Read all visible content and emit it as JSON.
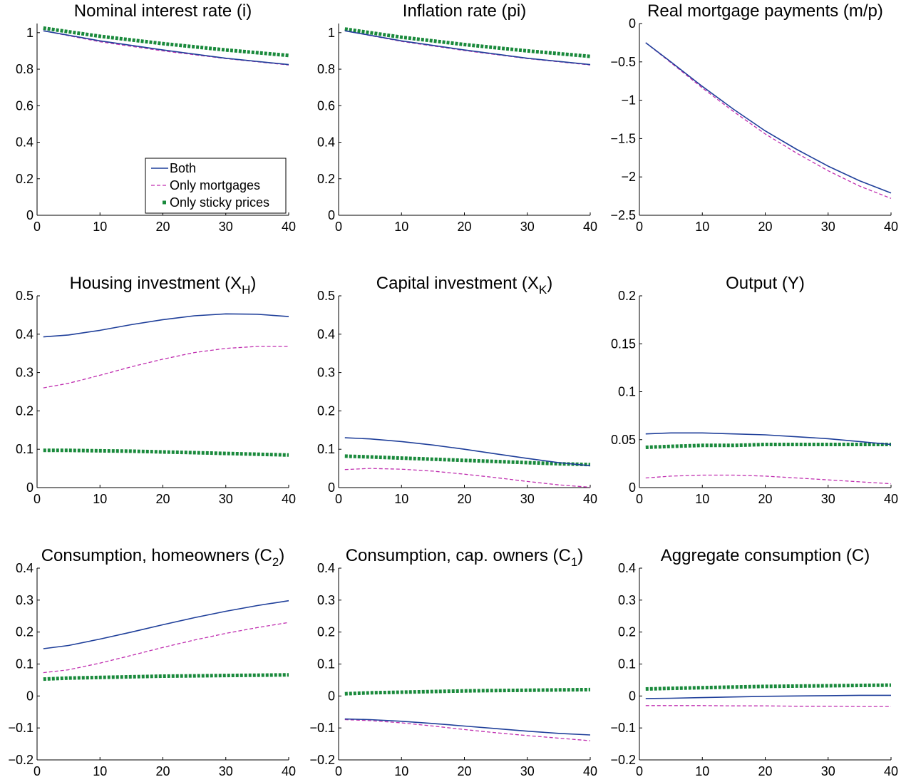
{
  "legend": {
    "entries": [
      "Both",
      "Only mortgages",
      "Only sticky prices"
    ],
    "placement": "lower-right of first panel"
  },
  "series_styles": [
    {
      "name": "Both",
      "color": "#1f3f9a",
      "style": "solid"
    },
    {
      "name": "Only mortgages",
      "color": "#c02fb0",
      "style": "dashed"
    },
    {
      "name": "Only sticky prices",
      "color": "#1a8a3c",
      "style": "dotted-square"
    }
  ],
  "chart_data": [
    {
      "type": "line",
      "title": "Nominal interest rate (i)",
      "title_main": "Nominal interest rate (i)",
      "title_sub": "",
      "title_tail": "",
      "xlim": [
        0,
        40
      ],
      "ylim": [
        0,
        1.05
      ],
      "xticks": [
        0,
        10,
        20,
        30,
        40
      ],
      "yticks": [
        0,
        0.2,
        0.4,
        0.6,
        0.8,
        1
      ],
      "ytick_labels": [
        "0",
        "0.2",
        "0.4",
        "0.6",
        "0.8",
        "1"
      ],
      "x": [
        1,
        10,
        20,
        30,
        40
      ],
      "series": [
        {
          "name": "Both",
          "values": [
            1.01,
            0.955,
            0.905,
            0.86,
            0.825
          ]
        },
        {
          "name": "Only mortgages",
          "values": [
            1.01,
            0.95,
            0.9,
            0.858,
            0.823
          ]
        },
        {
          "name": "Only sticky prices",
          "values": [
            1.025,
            0.98,
            0.94,
            0.905,
            0.875
          ]
        }
      ]
    },
    {
      "type": "line",
      "title": "Inflation rate (pi)",
      "title_main": "Inflation rate (pi)",
      "title_sub": "",
      "title_tail": "",
      "xlim": [
        0,
        40
      ],
      "ylim": [
        0,
        1.05
      ],
      "xticks": [
        0,
        10,
        20,
        30,
        40
      ],
      "yticks": [
        0,
        0.2,
        0.4,
        0.6,
        0.8,
        1
      ],
      "ytick_labels": [
        "0",
        "0.2",
        "0.4",
        "0.6",
        "0.8",
        "1"
      ],
      "x": [
        1,
        10,
        20,
        30,
        40
      ],
      "series": [
        {
          "name": "Both",
          "values": [
            1.01,
            0.955,
            0.905,
            0.86,
            0.825
          ]
        },
        {
          "name": "Only mortgages",
          "values": [
            1.01,
            0.952,
            0.902,
            0.858,
            0.823
          ]
        },
        {
          "name": "Only sticky prices",
          "values": [
            1.02,
            0.975,
            0.935,
            0.9,
            0.87
          ]
        }
      ]
    },
    {
      "type": "line",
      "title": "Real mortgage payments (m/p)",
      "title_main": "Real mortgage payments (m/p)",
      "title_sub": "",
      "title_tail": "",
      "xlim": [
        0,
        40
      ],
      "ylim": [
        -2.5,
        0
      ],
      "xticks": [
        0,
        10,
        20,
        30,
        40
      ],
      "yticks": [
        -2.5,
        -2,
        -1.5,
        -1,
        -0.5,
        0
      ],
      "ytick_labels": [
        "−2.5",
        "−2",
        "−1.5",
        "−1",
        "−0.5",
        "0"
      ],
      "x": [
        1,
        5,
        10,
        15,
        20,
        25,
        30,
        35,
        40
      ],
      "series": [
        {
          "name": "Both",
          "values": [
            -0.25,
            -0.5,
            -0.82,
            -1.12,
            -1.4,
            -1.64,
            -1.86,
            -2.05,
            -2.21
          ]
        },
        {
          "name": "Only mortgages",
          "values": [
            -0.25,
            -0.51,
            -0.84,
            -1.15,
            -1.44,
            -1.69,
            -1.92,
            -2.12,
            -2.28
          ]
        }
      ]
    },
    {
      "type": "line",
      "title": "Housing investment (XH)",
      "title_main": "Housing investment (X",
      "title_sub": "H",
      "title_tail": ")",
      "xlim": [
        0,
        40
      ],
      "ylim": [
        0,
        0.5
      ],
      "xticks": [
        0,
        10,
        20,
        30,
        40
      ],
      "yticks": [
        0,
        0.1,
        0.2,
        0.3,
        0.4,
        0.5
      ],
      "ytick_labels": [
        "0",
        "0.1",
        "0.2",
        "0.3",
        "0.4",
        "0.5"
      ],
      "x": [
        1,
        5,
        10,
        15,
        20,
        25,
        30,
        35,
        40
      ],
      "series": [
        {
          "name": "Both",
          "values": [
            0.393,
            0.398,
            0.41,
            0.425,
            0.438,
            0.448,
            0.453,
            0.452,
            0.446
          ]
        },
        {
          "name": "Only mortgages",
          "values": [
            0.26,
            0.272,
            0.293,
            0.315,
            0.335,
            0.352,
            0.363,
            0.368,
            0.368
          ]
        },
        {
          "name": "Only sticky prices",
          "values": [
            0.097,
            0.097,
            0.096,
            0.095,
            0.093,
            0.091,
            0.089,
            0.087,
            0.085
          ]
        }
      ]
    },
    {
      "type": "line",
      "title": "Capital investment (XK)",
      "title_main": "Capital investment (X",
      "title_sub": "K",
      "title_tail": ")",
      "xlim": [
        0,
        40
      ],
      "ylim": [
        0,
        0.5
      ],
      "xticks": [
        0,
        10,
        20,
        30,
        40
      ],
      "yticks": [
        0,
        0.1,
        0.2,
        0.3,
        0.4,
        0.5
      ],
      "ytick_labels": [
        "0",
        "0.1",
        "0.2",
        "0.3",
        "0.4",
        "0.5"
      ],
      "x": [
        1,
        5,
        10,
        15,
        20,
        25,
        30,
        35,
        40
      ],
      "series": [
        {
          "name": "Both",
          "values": [
            0.13,
            0.127,
            0.12,
            0.111,
            0.1,
            0.088,
            0.076,
            0.065,
            0.057
          ]
        },
        {
          "name": "Only mortgages",
          "values": [
            0.047,
            0.05,
            0.048,
            0.043,
            0.035,
            0.026,
            0.016,
            0.007,
            0.001
          ]
        },
        {
          "name": "Only sticky prices",
          "values": [
            0.082,
            0.08,
            0.077,
            0.074,
            0.071,
            0.068,
            0.065,
            0.062,
            0.06
          ]
        }
      ]
    },
    {
      "type": "line",
      "title": "Output (Y)",
      "title_main": "Output (Y)",
      "title_sub": "",
      "title_tail": "",
      "xlim": [
        0,
        40
      ],
      "ylim": [
        0,
        0.2
      ],
      "xticks": [
        0,
        10,
        20,
        30,
        40
      ],
      "yticks": [
        0,
        0.05,
        0.1,
        0.15,
        0.2
      ],
      "ytick_labels": [
        "0",
        "0.05",
        "0.1",
        "0.15",
        "0.2"
      ],
      "x": [
        1,
        5,
        10,
        15,
        20,
        25,
        30,
        35,
        40
      ],
      "series": [
        {
          "name": "Both",
          "values": [
            0.056,
            0.057,
            0.057,
            0.056,
            0.055,
            0.053,
            0.051,
            0.048,
            0.045
          ]
        },
        {
          "name": "Only mortgages",
          "values": [
            0.01,
            0.012,
            0.013,
            0.013,
            0.012,
            0.01,
            0.008,
            0.006,
            0.004
          ]
        },
        {
          "name": "Only sticky prices",
          "values": [
            0.042,
            0.043,
            0.044,
            0.044,
            0.045,
            0.045,
            0.045,
            0.045,
            0.045
          ]
        }
      ]
    },
    {
      "type": "line",
      "title": "Consumption, homeowners (C2)",
      "title_main": "Consumption, homeowners (C",
      "title_sub": "2",
      "title_tail": ")",
      "xlim": [
        0,
        40
      ],
      "ylim": [
        -0.2,
        0.4
      ],
      "xticks": [
        0,
        10,
        20,
        30,
        40
      ],
      "yticks": [
        -0.2,
        -0.1,
        0,
        0.1,
        0.2,
        0.3,
        0.4
      ],
      "ytick_labels": [
        "−0.2",
        "−0.1",
        "0",
        "0.1",
        "0.2",
        "0.3",
        "0.4"
      ],
      "x": [
        1,
        5,
        10,
        15,
        20,
        25,
        30,
        35,
        40
      ],
      "series": [
        {
          "name": "Both",
          "values": [
            0.148,
            0.158,
            0.178,
            0.2,
            0.223,
            0.245,
            0.265,
            0.283,
            0.298
          ]
        },
        {
          "name": "Only mortgages",
          "values": [
            0.073,
            0.082,
            0.103,
            0.127,
            0.152,
            0.175,
            0.196,
            0.214,
            0.23
          ]
        },
        {
          "name": "Only sticky prices",
          "values": [
            0.053,
            0.056,
            0.058,
            0.06,
            0.062,
            0.063,
            0.064,
            0.065,
            0.066
          ]
        }
      ]
    },
    {
      "type": "line",
      "title": "Consumption, cap. owners (C1)",
      "title_main": "Consumption, cap. owners (C",
      "title_sub": "1",
      "title_tail": ")",
      "xlim": [
        0,
        40
      ],
      "ylim": [
        -0.2,
        0.4
      ],
      "xticks": [
        0,
        10,
        20,
        30,
        40
      ],
      "yticks": [
        -0.2,
        -0.1,
        0,
        0.1,
        0.2,
        0.3,
        0.4
      ],
      "ytick_labels": [
        "−0.2",
        "−0.1",
        "0",
        "0.1",
        "0.2",
        "0.3",
        "0.4"
      ],
      "x": [
        1,
        5,
        10,
        15,
        20,
        25,
        30,
        35,
        40
      ],
      "series": [
        {
          "name": "Both",
          "values": [
            -0.072,
            -0.074,
            -0.079,
            -0.086,
            -0.094,
            -0.102,
            -0.11,
            -0.117,
            -0.122
          ]
        },
        {
          "name": "Only mortgages",
          "values": [
            -0.074,
            -0.077,
            -0.084,
            -0.094,
            -0.105,
            -0.115,
            -0.124,
            -0.132,
            -0.14
          ]
        },
        {
          "name": "Only sticky prices",
          "values": [
            0.007,
            0.01,
            0.012,
            0.014,
            0.016,
            0.017,
            0.018,
            0.019,
            0.02
          ]
        }
      ]
    },
    {
      "type": "line",
      "title": "Aggregate consumption (C)",
      "title_main": "Aggregate consumption (C)",
      "title_sub": "",
      "title_tail": "",
      "xlim": [
        0,
        40
      ],
      "ylim": [
        -0.2,
        0.4
      ],
      "xticks": [
        0,
        10,
        20,
        30,
        40
      ],
      "yticks": [
        -0.2,
        -0.1,
        0,
        0.1,
        0.2,
        0.3,
        0.4
      ],
      "ytick_labels": [
        "−0.2",
        "−0.1",
        "0",
        "0.1",
        "0.2",
        "0.3",
        "0.4"
      ],
      "x": [
        1,
        5,
        10,
        15,
        20,
        25,
        30,
        35,
        40
      ],
      "series": [
        {
          "name": "Both",
          "values": [
            -0.008,
            -0.007,
            -0.005,
            -0.003,
            -0.001,
            0.0,
            0.001,
            0.002,
            0.002
          ]
        },
        {
          "name": "Only mortgages",
          "values": [
            -0.03,
            -0.03,
            -0.03,
            -0.031,
            -0.031,
            -0.032,
            -0.032,
            -0.033,
            -0.033
          ]
        },
        {
          "name": "Only sticky prices",
          "values": [
            0.022,
            0.024,
            0.026,
            0.028,
            0.03,
            0.031,
            0.032,
            0.033,
            0.034
          ]
        }
      ]
    }
  ]
}
